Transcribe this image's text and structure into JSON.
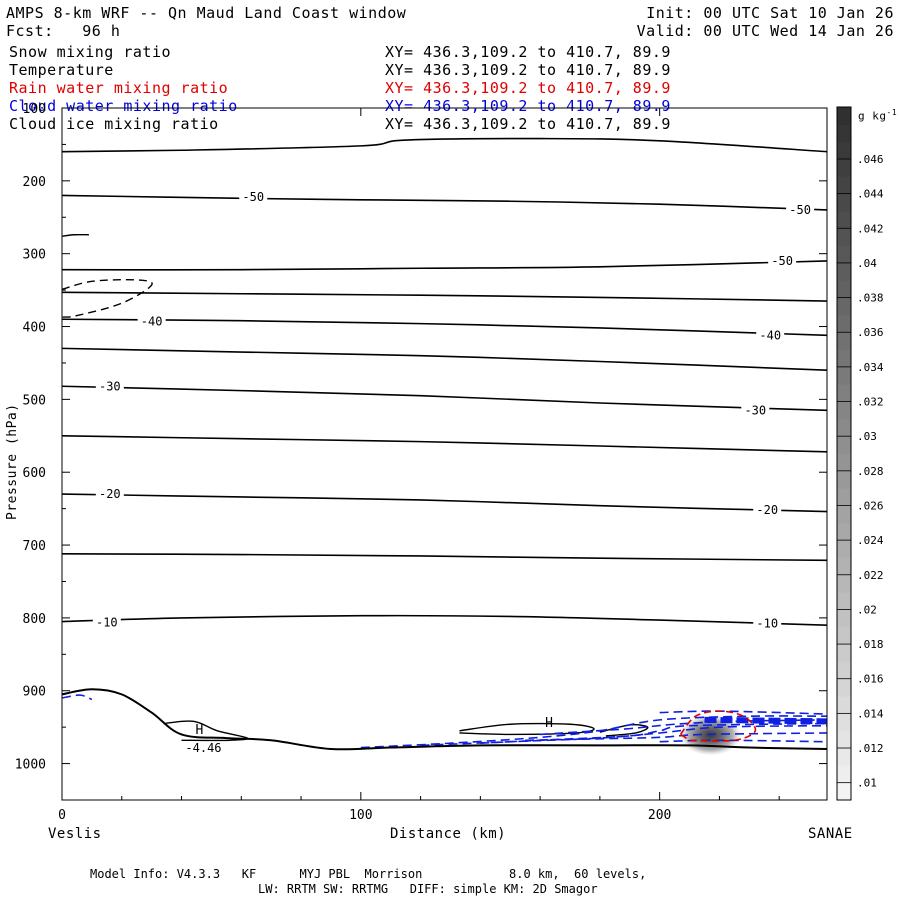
{
  "header": {
    "title": "AMPS 8-km WRF -- Qn Maud Land Coast window",
    "init": "Init: 00 UTC Sat 10 Jan 26",
    "fcst": "Fcst:   96 h",
    "valid": "Valid: 00 UTC Wed 14 Jan 26"
  },
  "fields": [
    {
      "name": "Snow mixing ratio",
      "xy": "XY= 436.3,109.2 to 410.7, 89.9",
      "color": "#000000"
    },
    {
      "name": "Temperature",
      "xy": "XY= 436.3,109.2 to 410.7, 89.9",
      "color": "#000000"
    },
    {
      "name": "Rain water mixing ratio",
      "xy": "XY= 436.3,109.2 to 410.7, 89.9",
      "color": "#e00000"
    },
    {
      "name": "Cloud water mixing ratio",
      "xy": "XY= 436.3,109.2 to 410.7, 89.9",
      "color": "#0000e0"
    },
    {
      "name": "Cloud ice mixing ratio",
      "xy": "XY= 436.3,109.2 to 410.7, 89.9",
      "color": "#000000"
    }
  ],
  "footer": {
    "line1": "Model Info: V4.3.3   KF      MYJ PBL  Morrison            8.0 km,  60 levels,",
    "line2": "LW: RRTM SW: RRTMG   DIFF: simple KM: 2D Smagor"
  },
  "chart_data": {
    "type": "contour",
    "xlabel": "Distance (km)",
    "ylabel": "Pressure (hPa)",
    "xlim": [
      0,
      256
    ],
    "ylim": [
      1050,
      100
    ],
    "x_ticks": [
      0,
      100,
      200
    ],
    "y_ticks": [
      100,
      200,
      300,
      400,
      500,
      600,
      700,
      800,
      900,
      1000
    ],
    "x_endpoints": {
      "left": "Veslis",
      "right": "SANAE"
    },
    "colorbar": {
      "unit": "g kg",
      "unit_exp": "-1",
      "ticks": [
        ".046",
        ".044",
        ".042",
        ".04",
        ".038",
        ".036",
        ".034",
        ".032",
        ".03",
        ".028",
        ".026",
        ".024",
        ".022",
        ".02",
        ".018",
        ".016",
        ".014",
        ".012",
        ".01"
      ],
      "tick_values": [
        0.046,
        0.044,
        0.042,
        0.04,
        0.038,
        0.036,
        0.034,
        0.032,
        0.03,
        0.028,
        0.026,
        0.024,
        0.022,
        0.02,
        0.018,
        0.016,
        0.014,
        0.012,
        0.01
      ],
      "range": [
        0.009,
        0.049
      ]
    },
    "temperature_contours": [
      {
        "points": [
          [
            0,
            160
          ],
          [
            40,
            158
          ],
          [
            100,
            152
          ],
          [
            115,
            144
          ],
          [
            160,
            142
          ],
          [
            200,
            145
          ],
          [
            256,
            160
          ]
        ]
      },
      {
        "label": "-50",
        "label_positions": [
          [
            64,
            222
          ],
          [
            247,
            240
          ]
        ],
        "points": [
          [
            0,
            220
          ],
          [
            60,
            224
          ],
          [
            100,
            226
          ],
          [
            150,
            228
          ],
          [
            200,
            232
          ],
          [
            256,
            240
          ]
        ]
      },
      {
        "label": "-50",
        "label_positions": [
          [
            241,
            310
          ]
        ],
        "points": [
          [
            0,
            322
          ],
          [
            60,
            322
          ],
          [
            120,
            320
          ],
          [
            180,
            318
          ],
          [
            256,
            310
          ]
        ]
      },
      {
        "points": [
          [
            0,
            353
          ],
          [
            60,
            355
          ],
          [
            120,
            357
          ],
          [
            180,
            360
          ],
          [
            256,
            365
          ]
        ]
      },
      {
        "label": "-40",
        "label_positions": [
          [
            30,
            393
          ],
          [
            237,
            412
          ]
        ],
        "points": [
          [
            0,
            390
          ],
          [
            60,
            392
          ],
          [
            120,
            396
          ],
          [
            180,
            402
          ],
          [
            256,
            412
          ]
        ]
      },
      {
        "points": [
          [
            0,
            430
          ],
          [
            60,
            435
          ],
          [
            120,
            440
          ],
          [
            180,
            448
          ],
          [
            256,
            460
          ]
        ]
      },
      {
        "label": "-30",
        "label_positions": [
          [
            16,
            482
          ],
          [
            232,
            515
          ]
        ],
        "points": [
          [
            0,
            482
          ],
          [
            60,
            488
          ],
          [
            120,
            495
          ],
          [
            180,
            505
          ],
          [
            256,
            515
          ]
        ]
      },
      {
        "points": [
          [
            0,
            550
          ],
          [
            60,
            554
          ],
          [
            120,
            558
          ],
          [
            180,
            564
          ],
          [
            256,
            572
          ]
        ]
      },
      {
        "label": "-20",
        "label_positions": [
          [
            16,
            630
          ],
          [
            236,
            652
          ]
        ],
        "points": [
          [
            0,
            630
          ],
          [
            60,
            634
          ],
          [
            120,
            638
          ],
          [
            180,
            646
          ],
          [
            256,
            654
          ]
        ]
      },
      {
        "points": [
          [
            0,
            712
          ],
          [
            60,
            713
          ],
          [
            120,
            715
          ],
          [
            180,
            718
          ],
          [
            256,
            721
          ]
        ]
      },
      {
        "label": "-10",
        "label_positions": [
          [
            15,
            806
          ],
          [
            236,
            808
          ]
        ],
        "points": [
          [
            0,
            805
          ],
          [
            40,
            800
          ],
          [
            100,
            797
          ],
          [
            150,
            798
          ],
          [
            200,
            803
          ],
          [
            256,
            810
          ]
        ]
      }
    ],
    "terrain": {
      "points": [
        [
          0,
          905
        ],
        [
          10,
          898
        ],
        [
          20,
          905
        ],
        [
          30,
          930
        ],
        [
          40,
          960
        ],
        [
          55,
          965
        ],
        [
          70,
          968
        ],
        [
          90,
          980
        ],
        [
          110,
          978
        ],
        [
          140,
          975
        ],
        [
          180,
          975
        ],
        [
          210,
          975
        ],
        [
          230,
          978
        ],
        [
          256,
          980
        ]
      ]
    },
    "highs": [
      {
        "label": "H",
        "value": "-4.46",
        "x": 46,
        "p": 965
      },
      {
        "label": "H",
        "value": "",
        "x": 163,
        "p": 955
      }
    ],
    "cloud_ice_contours": [
      {
        "points": [
          [
            0,
            276
          ],
          [
            4,
            274
          ],
          [
            9,
            274
          ]
        ]
      },
      {
        "points": [
          [
            0,
            349
          ],
          [
            10,
            338
          ],
          [
            25,
            336
          ],
          [
            30,
            343
          ],
          [
            20,
            368
          ],
          [
            5,
            385
          ],
          [
            0,
            387
          ]
        ],
        "style": "dashed"
      },
      {
        "points": [
          [
            34,
            945
          ],
          [
            44,
            942
          ],
          [
            52,
            955
          ],
          [
            62,
            965
          ],
          [
            56,
            968
          ],
          [
            40,
            968
          ]
        ]
      },
      {
        "points": [
          [
            133,
            955
          ],
          [
            150,
            946
          ],
          [
            170,
            946
          ],
          [
            178,
            952
          ],
          [
            172,
            958
          ],
          [
            150,
            960
          ],
          [
            133,
            958
          ]
        ]
      },
      {
        "points": [
          [
            180,
            957
          ],
          [
            190,
            947
          ],
          [
            196,
            950
          ],
          [
            192,
            958
          ],
          [
            182,
            962
          ]
        ]
      }
    ],
    "cloud_water_contours": [
      {
        "points": [
          [
            0,
            910
          ],
          [
            6,
            906
          ],
          [
            10,
            912
          ]
        ]
      },
      {
        "points": [
          [
            100,
            978
          ],
          [
            130,
            972
          ],
          [
            160,
            964
          ],
          [
            180,
            955
          ],
          [
            200,
            940
          ],
          [
            230,
            935
          ],
          [
            256,
            935
          ]
        ]
      },
      {
        "points": [
          [
            120,
            975
          ],
          [
            150,
            970
          ],
          [
            180,
            965
          ],
          [
            200,
            958
          ],
          [
            220,
            950
          ],
          [
            256,
            948
          ]
        ]
      },
      {
        "points": [
          [
            140,
            972
          ],
          [
            165,
            967
          ],
          [
            190,
            962
          ],
          [
            200,
            955
          ],
          [
            210,
            948
          ],
          [
            256,
            945
          ]
        ]
      },
      {
        "points": [
          [
            155,
            968
          ],
          [
            180,
            966
          ],
          [
            200,
            964
          ],
          [
            215,
            960
          ],
          [
            256,
            958
          ]
        ]
      },
      {
        "points": [
          [
            160,
            960
          ],
          [
            175,
            956
          ],
          [
            190,
            952
          ],
          [
            205,
            946
          ],
          [
            225,
            942
          ],
          [
            256,
            940
          ]
        ]
      },
      {
        "points": [
          [
            200,
            930
          ],
          [
            220,
            928
          ],
          [
            256,
            932
          ]
        ]
      },
      {
        "points": [
          [
            215,
            940
          ],
          [
            256,
            942
          ]
        ],
        "heavy": true
      },
      {
        "points": [
          [
            200,
            970
          ],
          [
            220,
            968
          ],
          [
            256,
            970
          ]
        ]
      }
    ],
    "rain_water_contours": [
      {
        "points": [
          [
            207,
            960
          ],
          [
            212,
            935
          ],
          [
            220,
            928
          ],
          [
            228,
            935
          ],
          [
            232,
            955
          ],
          [
            225,
            968
          ],
          [
            210,
            968
          ]
        ]
      }
    ],
    "snow_shading": {
      "center_x": 217,
      "center_p": 958,
      "radius_x": 11,
      "radius_p": 30,
      "max": 0.046
    }
  }
}
